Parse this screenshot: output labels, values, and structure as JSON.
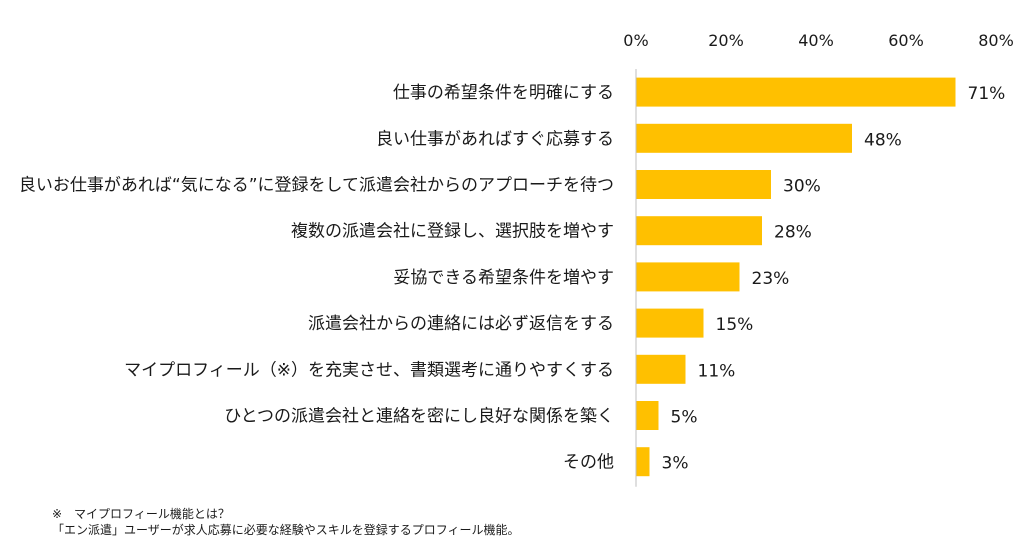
{
  "chart_data": {
    "type": "bar",
    "orientation": "horizontal",
    "categories": [
      "仕事の希望条件を明確にする",
      "良い仕事があればすぐ応募する",
      "良いお仕事があれば“気になる”に登録をして派遣会社からのアプローチを待つ",
      "複数の派遣会社に登録し、選択肢を増やす",
      "妥協できる希望条件を増やす",
      "派遣会社からの連絡には必ず返信をする",
      "マイプロフィール（※）を充実させ、書類選考に通りやすくする",
      "ひとつの派遣会社と連絡を密にし良好な関係を築く",
      "その他"
    ],
    "values": [
      71,
      48,
      30,
      28,
      23,
      15,
      11,
      5,
      3
    ],
    "value_labels": [
      "71%",
      "48%",
      "30%",
      "28%",
      "23%",
      "15%",
      "11%",
      "5%",
      "3%"
    ],
    "xlim": [
      0,
      80
    ],
    "x_ticks": [
      0,
      20,
      40,
      60,
      80
    ],
    "x_tick_labels": [
      "0%",
      "20%",
      "40%",
      "60%",
      "80%"
    ],
    "axis_position": "top",
    "grid": false,
    "legend": "none",
    "bar_color": "#FFC000",
    "axis_color": "#bfbfbf"
  },
  "footnote": {
    "line1": "※　マイプロフィール機能とは？",
    "line2": "「エン派遣」ユーザーが求人応募に必要な経験やスキルを登録するプロフィール機能。"
  }
}
